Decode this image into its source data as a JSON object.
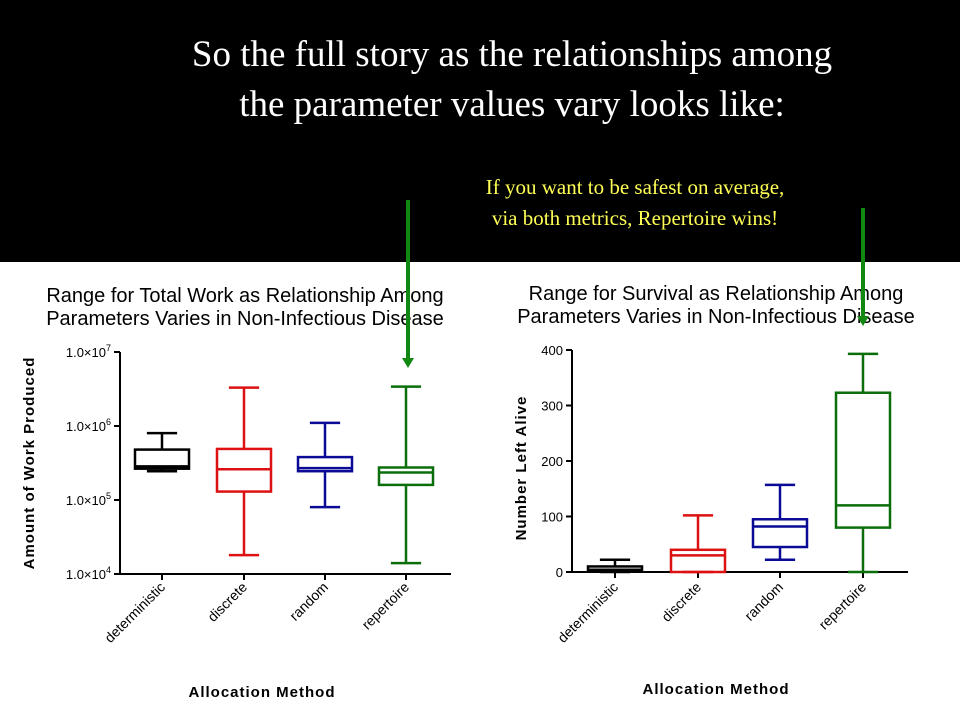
{
  "slide": {
    "title_line1": "So the full story as the relationships among",
    "title_line2": "the parameter values vary looks like:",
    "note_line1": "If you want to be safest on average,",
    "note_line2": "via both metrics, Repertoire wins!"
  },
  "colors": {
    "deterministic": "#000000",
    "discrete": "#dd1111",
    "random": "#0a0a96",
    "repertoire": "#0a6e0a",
    "arrow": "#118811"
  },
  "chart_data": [
    {
      "type": "box",
      "title_line1": "Range for Total Work as Relationship Among",
      "title_line2": "Parameters Varies in Non-Infectious Disease",
      "xlabel": "Allocation Method",
      "ylabel": "Amount of Work Produced",
      "yscale": "log",
      "ylim": [
        10000,
        10000000
      ],
      "yticks": [
        10000,
        100000,
        1000000,
        10000000
      ],
      "ytick_labels": [
        {
          "mant": "1.0×10",
          "exp": "4"
        },
        {
          "mant": "1.0×10",
          "exp": "5"
        },
        {
          "mant": "1.0×10",
          "exp": "6"
        },
        {
          "mant": "1.0×10",
          "exp": "7"
        }
      ],
      "categories": [
        "deterministic",
        "discrete",
        "random",
        "repertoire"
      ],
      "boxes": [
        {
          "min": 245000,
          "q1": 265000,
          "median": 285000,
          "q3": 480000,
          "max": 800000
        },
        {
          "min": 18000,
          "q1": 130000,
          "median": 260000,
          "q3": 490000,
          "max": 3300000
        },
        {
          "min": 80000,
          "q1": 245000,
          "median": 270000,
          "q3": 380000,
          "max": 1100000
        },
        {
          "min": 14000,
          "q1": 160000,
          "median": 235000,
          "q3": 275000,
          "max": 3400000
        }
      ]
    },
    {
      "type": "box",
      "title_line1": "Range for Survival as Relationship Among",
      "title_line2": "Parameters Varies in Non-Infectious Disease",
      "xlabel": "Allocation Method",
      "ylabel": "Number Left Alive",
      "yscale": "linear",
      "ylim": [
        0,
        400
      ],
      "yticks": [
        0,
        100,
        200,
        300,
        400
      ],
      "ytick_labels": [
        "0",
        "100",
        "200",
        "300",
        "400"
      ],
      "categories": [
        "deterministic",
        "discrete",
        "random",
        "repertoire"
      ],
      "boxes": [
        {
          "min": 0,
          "q1": 2,
          "median": 4,
          "q3": 10,
          "max": 22
        },
        {
          "min": 0,
          "q1": 0,
          "median": 30,
          "q3": 40,
          "max": 102
        },
        {
          "min": 22,
          "q1": 45,
          "median": 82,
          "q3": 95,
          "max": 157
        },
        {
          "min": 0,
          "q1": 80,
          "median": 120,
          "q3": 323,
          "max": 393
        }
      ]
    }
  ]
}
